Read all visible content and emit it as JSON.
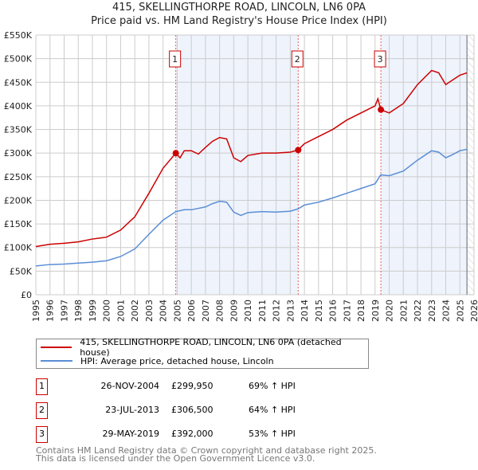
{
  "chart_data": {
    "type": "line",
    "title": "415, SKELLINGTHORPE ROAD, LINCOLN, LN6 0PA",
    "subtitle": "Price paid vs. HM Land Registry's House Price Index (HPI)",
    "xlim": [
      1995,
      2026
    ],
    "ylim": [
      0,
      550000
    ],
    "x_ticks": [
      "1995",
      "1996",
      "1997",
      "1998",
      "1999",
      "2000",
      "2001",
      "2002",
      "2003",
      "2004",
      "2005",
      "2006",
      "2007",
      "2008",
      "2009",
      "2010",
      "2011",
      "2012",
      "2013",
      "2014",
      "2015",
      "2016",
      "2017",
      "2018",
      "2019",
      "2020",
      "2021",
      "2022",
      "2023",
      "2024",
      "2025",
      "2026"
    ],
    "y_ticks": [
      "£0",
      "£50K",
      "£100K",
      "£150K",
      "£200K",
      "£250K",
      "£300K",
      "£350K",
      "£400K",
      "£450K",
      "£500K",
      "£550K"
    ],
    "grid": true,
    "series": [
      {
        "name": "415, SKELLINGTHORPE ROAD, LINCOLN, LN6 0PA (detached house)",
        "color": "#cc0000",
        "x": [
          1995,
          1996,
          1997,
          1998,
          1999,
          2000,
          2001,
          2002,
          2003,
          2004,
          2004.9,
          2005.2,
          2005.5,
          2006,
          2006.5,
          2007,
          2007.5,
          2008,
          2008.5,
          2009,
          2009.5,
          2010,
          2011,
          2012,
          2013,
          2013.56,
          2014,
          2015,
          2016,
          2017,
          2018,
          2019,
          2019.2,
          2019.4,
          2020,
          2021,
          2022,
          2023,
          2023.5,
          2024,
          2024.5,
          2025,
          2025.5
        ],
        "y": [
          102000,
          107000,
          109000,
          112000,
          118000,
          122000,
          137000,
          165000,
          215000,
          268000,
          299950,
          290000,
          305000,
          305000,
          298000,
          312000,
          325000,
          333000,
          330000,
          290000,
          282000,
          295000,
          300000,
          300000,
          302000,
          306500,
          320000,
          335000,
          350000,
          370000,
          385000,
          400000,
          415000,
          392000,
          385000,
          405000,
          445000,
          475000,
          470000,
          445000,
          455000,
          465000,
          470000
        ]
      },
      {
        "name": "HPI: Average price, detached house, Lincoln",
        "color": "#5b8ed6",
        "x": [
          1995,
          1996,
          1997,
          1998,
          1999,
          2000,
          2001,
          2002,
          2003,
          2004,
          2004.9,
          2005.5,
          2006,
          2007,
          2007.5,
          2008,
          2008.5,
          2009,
          2009.5,
          2010,
          2011,
          2012,
          2013,
          2013.56,
          2014,
          2015,
          2016,
          2017,
          2018,
          2019,
          2019.4,
          2020,
          2021,
          2022,
          2023,
          2023.5,
          2024,
          2024.5,
          2025,
          2025.5
        ],
        "y": [
          61000,
          64000,
          65000,
          67000,
          69000,
          72000,
          81000,
          97000,
          128000,
          158000,
          176000,
          180000,
          180000,
          186000,
          193000,
          198000,
          196000,
          175000,
          168000,
          174000,
          176000,
          175000,
          177000,
          182000,
          190000,
          196000,
          205000,
          215000,
          225000,
          235000,
          254000,
          252000,
          262000,
          285000,
          305000,
          302000,
          290000,
          297000,
          305000,
          308000
        ]
      }
    ],
    "sales": [
      {
        "label": "1",
        "x": 2004.9,
        "price": 299950,
        "date": "26-NOV-2004",
        "price_text": "£299,950",
        "hpi": "69% ↑ HPI"
      },
      {
        "label": "2",
        "x": 2013.56,
        "price": 306500,
        "date": "23-JUL-2013",
        "price_text": "£306,500",
        "hpi": "64% ↑ HPI"
      },
      {
        "label": "3",
        "x": 2019.41,
        "price": 392000,
        "date": "29-MAY-2019",
        "price_text": "£392,000",
        "hpi": "53% ↑ HPI"
      }
    ],
    "data_end": 2025.5,
    "legend_position": "below"
  },
  "footer": {
    "line1": "Contains HM Land Registry data © Crown copyright and database right 2025.",
    "line2": "This data is licensed under the Open Government Licence v3.0."
  }
}
